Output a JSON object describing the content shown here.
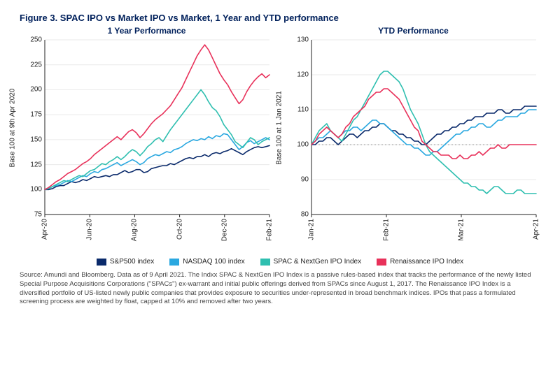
{
  "figure_title": "Figure 3. SPAC IPO vs Market IPO vs Market, 1 Year and YTD performance",
  "caption": "Source: Amundi and Bloomberg. Data as of 9 April 2021. The Indxx SPAC & NextGen IPO Index is a passive rules-based index that tracks the performance of the newly listed Special Purpose Acquisitions Corporations (\"SPACs\") ex-warrant and initial public offerings derived from SPACs since August 1, 2017. The Renaissance IPO Index is a diversified portfolio of US-listed newly public companies that provides exposure to securities under-represented in broad benchmark indices. IPOs that pass a formulated screening process are weighted by float, capped at 10% and removed after two years.",
  "legend": [
    {
      "label": "S&P500 index",
      "color": "#0a2a6b"
    },
    {
      "label": "NASDAQ 100 index",
      "color": "#2aa8e0"
    },
    {
      "label": "SPAC & NextGen IPO Index",
      "color": "#2fbfb0"
    },
    {
      "label": "Renaissance IPO Index",
      "color": "#e8315a"
    }
  ],
  "panels": [
    {
      "title": "1 Year Performance",
      "ylabel": "Base 100 at 9th Apr 2020",
      "ylim": [
        75,
        250
      ],
      "ytick_step": 25,
      "xcats": [
        "Apr-20",
        "Jun-20",
        "Aug-20",
        "Oct-20",
        "Dec-20",
        "Feb-21"
      ],
      "background": "#ffffff",
      "grid_color": "#eaeaea",
      "line_width": 1.6,
      "n": 60,
      "series": [
        {
          "color": "#0a2a6b",
          "data": [
            100,
            100,
            101,
            103,
            104,
            104,
            106,
            108,
            107,
            108,
            110,
            109,
            111,
            113,
            112,
            113,
            114,
            113,
            115,
            115,
            117,
            119,
            117,
            118,
            120,
            120,
            117,
            118,
            121,
            122,
            123,
            124,
            124,
            126,
            125,
            127,
            129,
            131,
            132,
            131,
            133,
            133,
            135,
            133,
            136,
            137,
            136,
            138,
            139,
            141,
            139,
            137,
            135,
            138,
            140,
            142,
            143,
            142,
            143,
            144
          ]
        },
        {
          "color": "#2aa8e0",
          "data": [
            100,
            101,
            103,
            104,
            105,
            107,
            109,
            108,
            110,
            112,
            114,
            113,
            116,
            118,
            117,
            120,
            121,
            123,
            125,
            127,
            124,
            126,
            128,
            130,
            128,
            125,
            127,
            131,
            133,
            135,
            134,
            136,
            138,
            137,
            140,
            141,
            143,
            146,
            148,
            150,
            149,
            151,
            150,
            153,
            151,
            154,
            153,
            156,
            155,
            150,
            145,
            140,
            143,
            147,
            149,
            146,
            148,
            150,
            152,
            150
          ]
        },
        {
          "color": "#2fbfb0",
          "data": [
            100,
            101,
            103,
            105,
            107,
            109,
            108,
            110,
            112,
            114,
            113,
            116,
            119,
            120,
            123,
            126,
            125,
            128,
            130,
            133,
            130,
            133,
            137,
            140,
            138,
            134,
            138,
            143,
            146,
            150,
            152,
            148,
            154,
            160,
            165,
            170,
            175,
            180,
            185,
            190,
            195,
            200,
            195,
            188,
            182,
            179,
            173,
            165,
            160,
            155,
            148,
            145,
            142,
            147,
            152,
            150,
            145,
            148,
            150,
            152
          ]
        },
        {
          "color": "#e8315a",
          "data": [
            100,
            102,
            105,
            108,
            110,
            113,
            116,
            118,
            120,
            123,
            126,
            128,
            131,
            135,
            138,
            141,
            144,
            147,
            150,
            153,
            150,
            154,
            158,
            160,
            157,
            152,
            156,
            161,
            166,
            170,
            173,
            176,
            180,
            184,
            190,
            196,
            202,
            210,
            218,
            226,
            234,
            240,
            245,
            240,
            232,
            224,
            216,
            210,
            205,
            198,
            192,
            186,
            190,
            198,
            204,
            209,
            213,
            216,
            212,
            215
          ]
        }
      ]
    },
    {
      "title": "YTD Performance",
      "ylabel": "Base 100 at 1 Jan 2021",
      "ylim": [
        80,
        130
      ],
      "ytick_step": 10,
      "xcats": [
        "Jan-21",
        "Feb-21",
        "Mar-21",
        "Apr-21"
      ],
      "background": "#ffffff",
      "grid_color": "#eaeaea",
      "line_width": 1.6,
      "ref100_dash": true,
      "n": 60,
      "series": [
        {
          "color": "#0a2a6b",
          "data": [
            100,
            100,
            101,
            101,
            102,
            102,
            101,
            100,
            101,
            102,
            103,
            103,
            102,
            103,
            104,
            104,
            105,
            105,
            106,
            106,
            105,
            104,
            104,
            103,
            103,
            102,
            102,
            101,
            101,
            100,
            100,
            101,
            102,
            103,
            103,
            104,
            104,
            105,
            105,
            106,
            106,
            107,
            107,
            108,
            108,
            108,
            109,
            109,
            109,
            110,
            110,
            109,
            109,
            110,
            110,
            110,
            111,
            111,
            111,
            111
          ]
        },
        {
          "color": "#2aa8e0",
          "data": [
            100,
            101,
            102,
            102,
            103,
            104,
            103,
            102,
            103,
            104,
            104,
            105,
            105,
            104,
            105,
            106,
            107,
            107,
            106,
            106,
            105,
            104,
            103,
            102,
            101,
            100,
            100,
            99,
            99,
            98,
            97,
            97,
            98,
            98,
            99,
            100,
            101,
            102,
            103,
            103,
            104,
            104,
            105,
            105,
            106,
            106,
            105,
            105,
            106,
            107,
            107,
            108,
            108,
            108,
            108,
            109,
            109,
            110,
            110,
            110
          ]
        },
        {
          "color": "#2fbfb0",
          "data": [
            100,
            102,
            104,
            105,
            106,
            104,
            103,
            102,
            101,
            103,
            105,
            107,
            108,
            110,
            112,
            114,
            116,
            118,
            120,
            121,
            121,
            120,
            119,
            118,
            116,
            113,
            110,
            108,
            106,
            103,
            100,
            98,
            97,
            96,
            95,
            94,
            93,
            92,
            91,
            90,
            89,
            89,
            88,
            88,
            87,
            87,
            86,
            87,
            88,
            88,
            87,
            86,
            86,
            86,
            87,
            87,
            86,
            86,
            86,
            86
          ]
        },
        {
          "color": "#e8315a",
          "data": [
            100,
            101,
            103,
            104,
            105,
            104,
            103,
            102,
            103,
            105,
            106,
            108,
            109,
            110,
            111,
            113,
            114,
            115,
            115,
            116,
            116,
            115,
            114,
            113,
            111,
            109,
            107,
            105,
            104,
            101,
            100,
            99,
            98,
            98,
            97,
            97,
            97,
            96,
            96,
            97,
            96,
            96,
            97,
            97,
            98,
            97,
            98,
            99,
            99,
            100,
            99,
            99,
            100,
            100,
            100,
            100,
            100,
            100,
            100,
            100
          ]
        }
      ]
    }
  ],
  "style": {
    "title_color": "#00205b",
    "tick_color": "#222222",
    "axis_color": "#222222",
    "title_fontsize": 13,
    "label_fontsize": 10
  }
}
